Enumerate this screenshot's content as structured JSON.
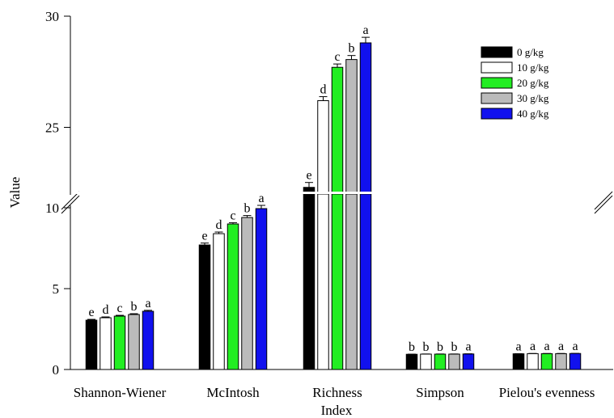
{
  "chart_data": {
    "type": "bar",
    "title": "",
    "xlabel": "Index",
    "ylabel": "Value",
    "axis_break": {
      "lower_range": [
        0,
        11
      ],
      "upper_range": [
        22,
        30
      ]
    },
    "ylim": [
      0,
      30
    ],
    "yticks": [
      "0",
      "5",
      "10",
      "25",
      "30"
    ],
    "categories": [
      "Shannon-Wiener",
      "McIntosh",
      "Richness",
      "Simpson",
      "Pielou's evenness"
    ],
    "legend_position": "top-right",
    "series": [
      {
        "name": "0 g/kg",
        "color": "#000000",
        "values": [
          3.05,
          7.7,
          22.3,
          0.94,
          0.97
        ],
        "errors": [
          0.05,
          0.12,
          0.22,
          0.01,
          0.01
        ],
        "letters": [
          "e",
          "e",
          "e",
          "b",
          "a"
        ]
      },
      {
        "name": "10 g/kg",
        "color": "#ffffff",
        "values": [
          3.2,
          8.4,
          26.2,
          0.95,
          0.98
        ],
        "errors": [
          0.05,
          0.1,
          0.18,
          0.01,
          0.01
        ],
        "letters": [
          "d",
          "d",
          "d",
          "b",
          "a"
        ]
      },
      {
        "name": "20 g/kg",
        "color": "#22ee22",
        "values": [
          3.3,
          9.0,
          27.7,
          0.95,
          0.98
        ],
        "errors": [
          0.05,
          0.08,
          0.15,
          0.01,
          0.01
        ],
        "letters": [
          "c",
          "c",
          "c",
          "b",
          "a"
        ]
      },
      {
        "name": "30 g/kg",
        "color": "#bbbbbb",
        "values": [
          3.4,
          9.4,
          28.05,
          0.95,
          0.98
        ],
        "errors": [
          0.05,
          0.12,
          0.18,
          0.01,
          0.01
        ],
        "letters": [
          "b",
          "b",
          "b",
          "b",
          "a"
        ]
      },
      {
        "name": "40 g/kg",
        "color": "#1111ee",
        "values": [
          3.6,
          9.95,
          28.8,
          0.96,
          0.99
        ],
        "errors": [
          0.06,
          0.2,
          0.25,
          0.01,
          0.01
        ],
        "letters": [
          "a",
          "a",
          "a",
          "a",
          "a"
        ]
      }
    ]
  }
}
